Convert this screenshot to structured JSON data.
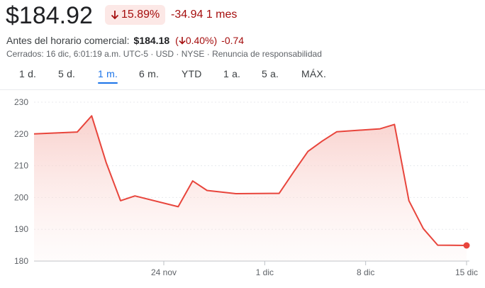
{
  "quote": {
    "price": "$184.92",
    "change_pct": "15.89%",
    "change_abs": "-34.94 1 mes",
    "premarket_label": "Antes del horario comercial:",
    "premarket_price": "$184.18",
    "premarket_paren_open": "(",
    "premarket_pct": "0.40%)",
    "premarket_change": "-0.74",
    "meta": "Cerrados: 16 dic, 6:01:19 a.m. UTC-5 · USD · NYSE · Renuncia de responsabilidad",
    "negative_color": "#a50e0e"
  },
  "tabs": [
    {
      "label": "1 d.",
      "active": false
    },
    {
      "label": "5 d.",
      "active": false
    },
    {
      "label": "1 m.",
      "active": true
    },
    {
      "label": "6 m.",
      "active": false
    },
    {
      "label": "YTD",
      "active": false
    },
    {
      "label": "1 a.",
      "active": false
    },
    {
      "label": "5 a.",
      "active": false
    },
    {
      "label": "MÁX.",
      "active": false
    }
  ],
  "chart_data": {
    "type": "area",
    "x": [
      "2024-11-15",
      "2024-11-18",
      "2024-11-19",
      "2024-11-20",
      "2024-11-21",
      "2024-11-22",
      "2024-11-25",
      "2024-11-26",
      "2024-11-27",
      "2024-11-29",
      "2024-12-02",
      "2024-12-03",
      "2024-12-04",
      "2024-12-05",
      "2024-12-06",
      "2024-12-09",
      "2024-12-10",
      "2024-12-11",
      "2024-12-12",
      "2024-12-13",
      "2024-12-15"
    ],
    "values": [
      220.0,
      220.6,
      225.7,
      211.0,
      199.0,
      200.5,
      197.1,
      205.2,
      202.2,
      201.2,
      201.3,
      208.0,
      214.5,
      217.8,
      220.7,
      221.6,
      223.0,
      199.0,
      190.2,
      185.0,
      184.92
    ],
    "ylim": [
      180,
      230
    ],
    "yticks": [
      180,
      190,
      200,
      210,
      220,
      230
    ],
    "xtick_labels": [
      {
        "label": "24 nov",
        "x": "2024-11-24"
      },
      {
        "label": "1 dic",
        "x": "2024-12-01"
      },
      {
        "label": "8 dic",
        "x": "2024-12-08"
      },
      {
        "label": "15 dic",
        "x": "2024-12-15"
      }
    ],
    "line_color": "#e8453c",
    "fill_color": "#fce8e6",
    "grid": true,
    "legend": false
  }
}
